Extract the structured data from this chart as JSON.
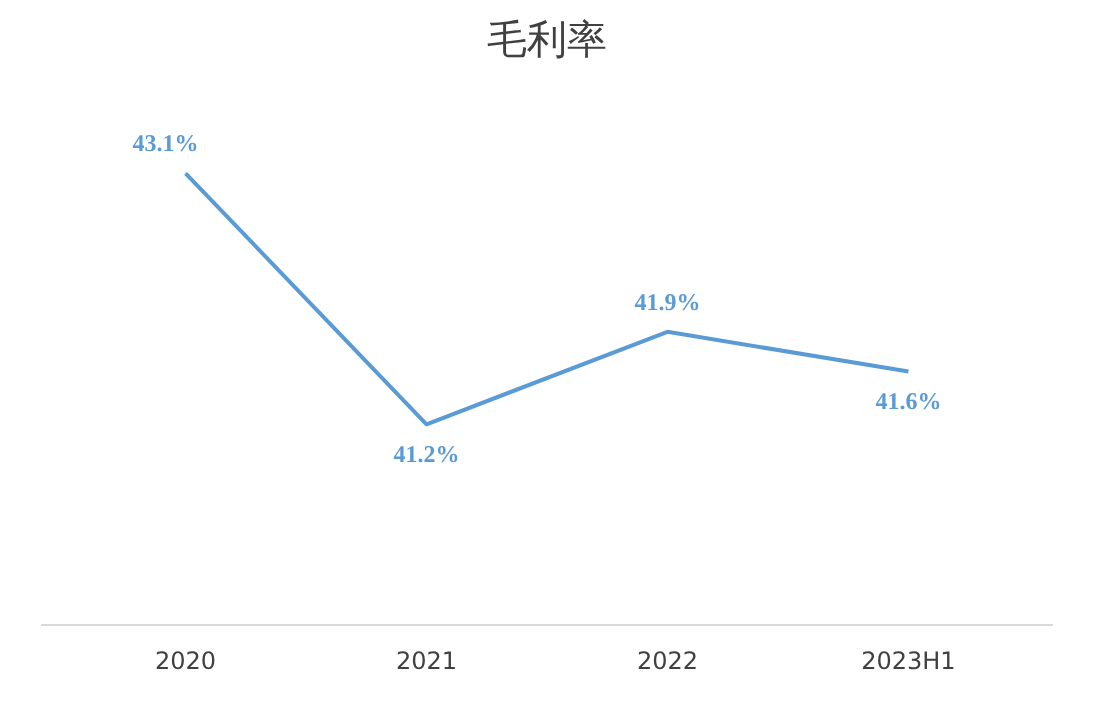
{
  "chart_data": {
    "type": "line",
    "title": "毛利率",
    "categories": [
      "2020",
      "2021",
      "2022",
      "2023H1"
    ],
    "series": [
      {
        "color": "#5b9bd5",
        "values": [
          43.1,
          41.2,
          41.9,
          41.6
        ],
        "value_labels": [
          "43.1%",
          "41.2%",
          "41.9%",
          "41.6%"
        ]
      }
    ],
    "tick_labels": "x",
    "grid": false,
    "marker": "none",
    "line_style": "solid"
  }
}
